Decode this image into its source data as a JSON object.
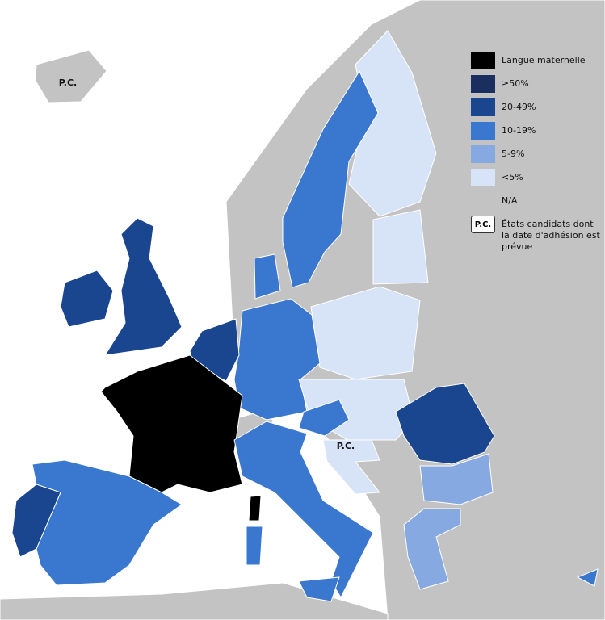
{
  "legend": {
    "items": [
      {
        "label": "Langue maternelle",
        "color": "#000000"
      },
      {
        "label": "≥50%",
        "color": "#1b2f5f"
      },
      {
        "label": "20-49%",
        "color": "#1a458f"
      },
      {
        "label": "10-19%",
        "color": "#3a77cf"
      },
      {
        "label": "5-9%",
        "color": "#87a9e1"
      },
      {
        "label": "<5%",
        "color": "#d7e3f6"
      },
      {
        "label": "N/A",
        "color": "#c3c3c3"
      },
      {
        "label": "États candidats dont la date d'adhésion est prévue",
        "swatch_text": "P.C.",
        "color": "#ffffff"
      }
    ]
  },
  "map": {
    "labels": [
      "P.C.",
      "P.C."
    ]
  }
}
